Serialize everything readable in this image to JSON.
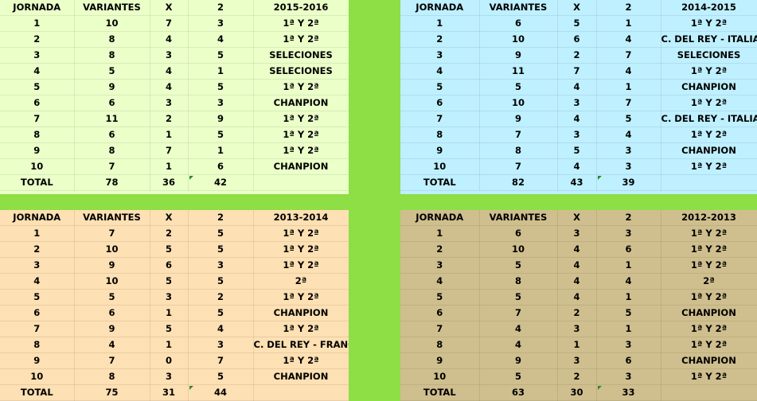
{
  "blocks": {
    "tl": {
      "headers": [
        "JORNADA",
        "VARIANTES",
        "X",
        "2",
        "2015-2016"
      ],
      "rows": [
        [
          "1",
          "10",
          "7",
          "3",
          "1ª Y 2ª"
        ],
        [
          "2",
          "8",
          "4",
          "4",
          "1ª Y 2ª"
        ],
        [
          "3",
          "8",
          "3",
          "5",
          "SELECIONES"
        ],
        [
          "4",
          "5",
          "4",
          "1",
          "SELECIONES"
        ],
        [
          "5",
          "9",
          "4",
          "5",
          "1ª Y 2ª"
        ],
        [
          "6",
          "6",
          "3",
          "3",
          "CHANPION"
        ],
        [
          "7",
          "11",
          "2",
          "9",
          "1ª Y 2ª"
        ],
        [
          "8",
          "6",
          "1",
          "5",
          "1ª Y 2ª"
        ],
        [
          "9",
          "8",
          "7",
          "1",
          "1ª Y 2ª"
        ],
        [
          "10",
          "7",
          "1",
          "6",
          "CHANPION"
        ]
      ],
      "total": [
        "TOTAL",
        "78",
        "36",
        "42",
        ""
      ]
    },
    "tr": {
      "headers": [
        "JORNADA",
        "VARIANTES",
        "X",
        "2",
        "2014-2015"
      ],
      "rows": [
        [
          "1",
          "6",
          "5",
          "1",
          "1ª Y 2ª"
        ],
        [
          "2",
          "10",
          "6",
          "4",
          "C. DEL REY - ITALIA"
        ],
        [
          "3",
          "9",
          "2",
          "7",
          "SELECIONES"
        ],
        [
          "4",
          "11",
          "7",
          "4",
          "1ª Y 2ª"
        ],
        [
          "5",
          "5",
          "4",
          "1",
          "CHANPION"
        ],
        [
          "6",
          "10",
          "3",
          "7",
          "1ª Y 2ª"
        ],
        [
          "7",
          "9",
          "4",
          "5",
          "C. DEL REY - ITALIA"
        ],
        [
          "8",
          "7",
          "3",
          "4",
          "1ª Y 2ª"
        ],
        [
          "9",
          "8",
          "5",
          "3",
          "CHANPION"
        ],
        [
          "10",
          "7",
          "4",
          "3",
          "1ª Y 2ª"
        ]
      ],
      "total": [
        "TOTAL",
        "82",
        "43",
        "39",
        ""
      ]
    },
    "bl": {
      "headers": [
        "JORNADA",
        "VARIANTES",
        "X",
        "2",
        "2013-2014"
      ],
      "rows": [
        [
          "1",
          "7",
          "2",
          "5",
          "1ª Y 2ª"
        ],
        [
          "2",
          "10",
          "5",
          "5",
          "1ª Y 2ª"
        ],
        [
          "3",
          "9",
          "6",
          "3",
          "1ª Y 2ª"
        ],
        [
          "4",
          "10",
          "5",
          "5",
          "2ª"
        ],
        [
          "5",
          "5",
          "3",
          "2",
          "1ª Y 2ª"
        ],
        [
          "6",
          "6",
          "1",
          "5",
          "CHANPION"
        ],
        [
          "7",
          "9",
          "5",
          "4",
          "1ª Y 2ª"
        ],
        [
          "8",
          "4",
          "1",
          "3",
          "C. DEL REY - FRANCIA"
        ],
        [
          "9",
          "7",
          "0",
          "7",
          "1ª Y 2ª"
        ],
        [
          "10",
          "8",
          "3",
          "5",
          "CHANPION"
        ]
      ],
      "total": [
        "TOTAL",
        "75",
        "31",
        "44",
        ""
      ]
    },
    "br": {
      "headers": [
        "JORNADA",
        "VARIANTES",
        "X",
        "2",
        "2012-2013"
      ],
      "rows": [
        [
          "1",
          "6",
          "3",
          "3",
          "1ª Y 2ª"
        ],
        [
          "2",
          "10",
          "4",
          "6",
          "1ª Y 2ª"
        ],
        [
          "3",
          "5",
          "4",
          "1",
          "1ª Y 2ª"
        ],
        [
          "4",
          "8",
          "4",
          "4",
          "2ª"
        ],
        [
          "5",
          "5",
          "4",
          "1",
          "1ª Y 2ª"
        ],
        [
          "6",
          "7",
          "2",
          "5",
          "CHANPION"
        ],
        [
          "7",
          "4",
          "3",
          "1",
          "1ª Y 2ª"
        ],
        [
          "8",
          "4",
          "1",
          "3",
          "1ª Y 2ª"
        ],
        [
          "9",
          "9",
          "3",
          "6",
          "CHANPION"
        ],
        [
          "10",
          "5",
          "2",
          "3",
          "1ª Y 2ª"
        ]
      ],
      "total": [
        "TOTAL",
        "63",
        "30",
        "33",
        ""
      ]
    }
  },
  "colors": {
    "separator": "#8ede46",
    "tl_fill": "#ebffc9",
    "tr_fill": "#bff0ff",
    "bl_fill": "#fde0b3",
    "br_fill": "#cfbf8e",
    "error_indicator": "#2c8a2c"
  }
}
